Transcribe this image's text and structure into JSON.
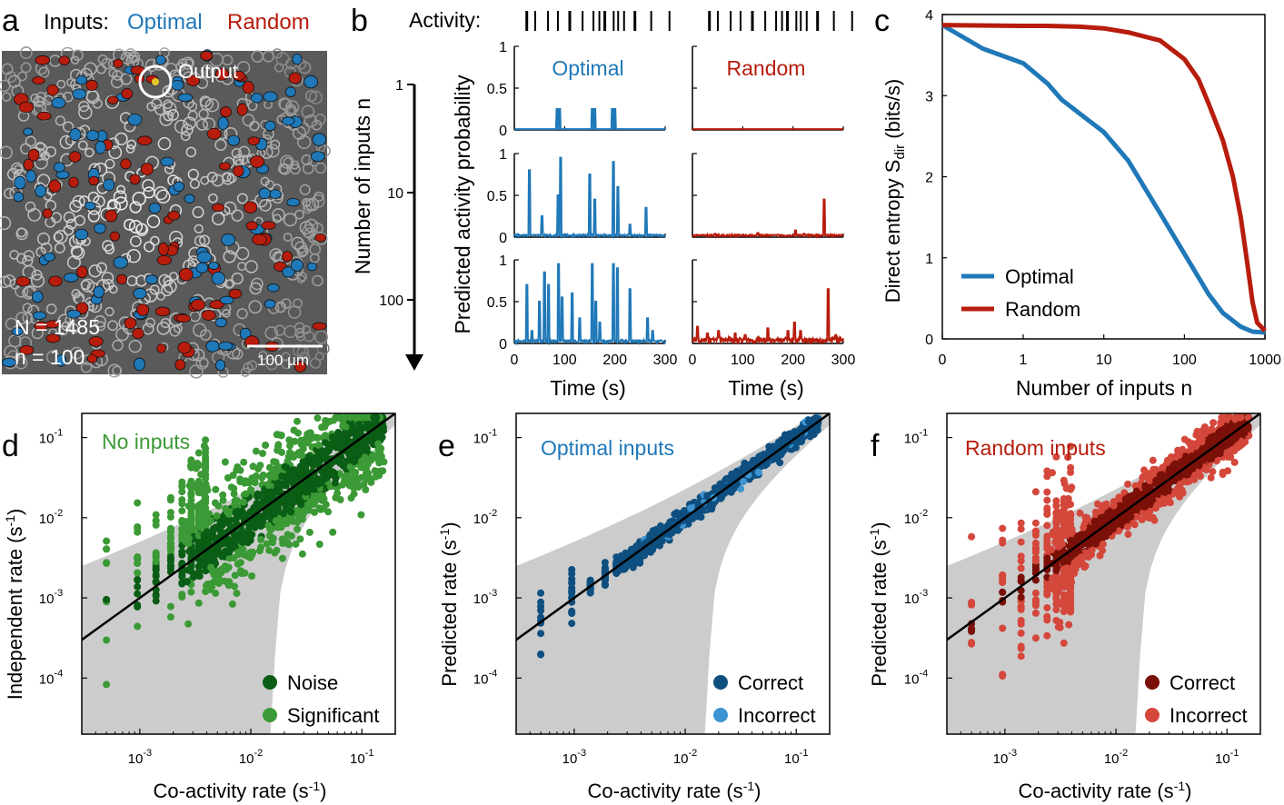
{
  "colors": {
    "optimal": "#1f78b8",
    "random": "#b71c0c",
    "noise": "#0a5d14",
    "significant": "#3b9a35",
    "correct_opt": "#0e4f80",
    "incorrect_opt": "#3c95d1",
    "correct_rnd": "#7a1008",
    "incorrect_rnd": "#d4473b",
    "band": "#cccccc"
  },
  "panel_a": {
    "letter": "a",
    "inputs_label": "Inputs:",
    "optimal_label": "Optimal",
    "random_label": "Random",
    "output_label": "Output",
    "N_text": "N = 1485",
    "n_text": "n = 100",
    "scalebar_label": "100 µm"
  },
  "panel_b": {
    "letter": "b",
    "activity_label": "Activity:",
    "spike_times": [
      5,
      22,
      48,
      68,
      92,
      118,
      140,
      152,
      163,
      181,
      190,
      202,
      224,
      257,
      294
    ],
    "y_axis_label": "Number of inputs n",
    "n_ticks": [
      "1",
      "10",
      "100"
    ],
    "prob_label": "Predicted activity probability",
    "optimal_title": "Optimal",
    "random_title": "Random",
    "y_ticks": [
      "0",
      "0.5",
      "1"
    ],
    "x_ticks": [
      "0",
      "100",
      "200",
      "300"
    ],
    "x_label": "Time (s)"
  },
  "panel_c": {
    "letter": "c",
    "y_label_main": "Direct entropy S",
    "y_label_sub": "dir",
    "y_label_unit": " (bits/s)",
    "x_label": "Number of inputs n",
    "x_ticks": [
      "0",
      "1",
      "10",
      "100",
      "1000"
    ],
    "y_ticks": [
      "0",
      "1",
      "2",
      "3",
      "4"
    ],
    "legend": [
      "Optimal",
      "Random"
    ]
  },
  "chart_data": [
    {
      "panel": "c",
      "type": "line",
      "title": "",
      "xlabel": "Number of inputs n",
      "ylabel": "Direct entropy S_dir (bits/s)",
      "xscale": "symlog",
      "xlim": [
        0,
        1000
      ],
      "ylim": [
        0,
        4
      ],
      "legend_position": "bottom-left",
      "series": [
        {
          "name": "Optimal",
          "x": [
            0,
            0.5,
            1,
            2,
            3,
            5,
            10,
            20,
            50,
            100,
            200,
            300,
            500,
            700,
            1000
          ],
          "y": [
            3.87,
            3.58,
            3.4,
            3.15,
            2.95,
            2.78,
            2.55,
            2.2,
            1.55,
            1.05,
            0.55,
            0.32,
            0.15,
            0.09,
            0.08
          ]
        },
        {
          "name": "Random",
          "x": [
            0,
            1,
            2,
            5,
            10,
            20,
            50,
            100,
            150,
            200,
            300,
            400,
            500,
            600,
            700,
            800,
            1000
          ],
          "y": [
            3.87,
            3.86,
            3.86,
            3.85,
            3.83,
            3.78,
            3.68,
            3.45,
            3.2,
            2.9,
            2.45,
            2.0,
            1.5,
            0.95,
            0.45,
            0.2,
            0.1
          ]
        }
      ]
    },
    {
      "panel": "d",
      "type": "scatter",
      "title": "No inputs",
      "xlabel": "Co-activity rate (s-1)",
      "ylabel": "Independent rate (s-1)",
      "xscale": "log",
      "yscale": "log",
      "xlim": [
        0.0003,
        0.2
      ],
      "ylim": [
        2e-05,
        0.2
      ],
      "legend": [
        "Noise",
        "Significant"
      ],
      "legend_position": "bottom-right"
    },
    {
      "panel": "e",
      "type": "scatter",
      "title": "Optimal inputs",
      "xlabel": "Co-activity rate (s-1)",
      "ylabel": "Predicted rate (s-1)",
      "xscale": "log",
      "yscale": "log",
      "xlim": [
        0.0003,
        0.2
      ],
      "ylim": [
        2e-05,
        0.2
      ],
      "legend": [
        "Correct",
        "Incorrect"
      ],
      "legend_position": "bottom-right"
    },
    {
      "panel": "f",
      "type": "scatter",
      "title": "Random inputs",
      "xlabel": "Co-activity rate (s-1)",
      "ylabel": "Predicted rate (s-1)",
      "xscale": "log",
      "yscale": "log",
      "xlim": [
        0.0003,
        0.2
      ],
      "ylim": [
        2e-05,
        0.2
      ],
      "legend": [
        "Correct",
        "Incorrect"
      ],
      "legend_position": "bottom-right"
    }
  ],
  "panel_d": {
    "letter": "d",
    "title": "No inputs",
    "y_label": "Independent rate (s",
    "legend": [
      "Noise",
      "Significant"
    ]
  },
  "panel_e": {
    "letter": "e",
    "title": "Optimal inputs",
    "y_label": "Predicted rate (s",
    "legend": [
      "Correct",
      "Incorrect"
    ]
  },
  "panel_f": {
    "letter": "f",
    "title": "Random inputs",
    "y_label": "Predicted rate (s",
    "legend": [
      "Correct",
      "Incorrect"
    ]
  },
  "scatter_common": {
    "x_label": "Co-activity rate (s",
    "label_close": ")",
    "sup_neg1": "-1",
    "y_tick_exps": [
      "-4",
      "-3",
      "-2",
      "-1"
    ],
    "x_tick_exps": [
      "-3",
      "-2",
      "-1"
    ],
    "tick_base": "10"
  }
}
